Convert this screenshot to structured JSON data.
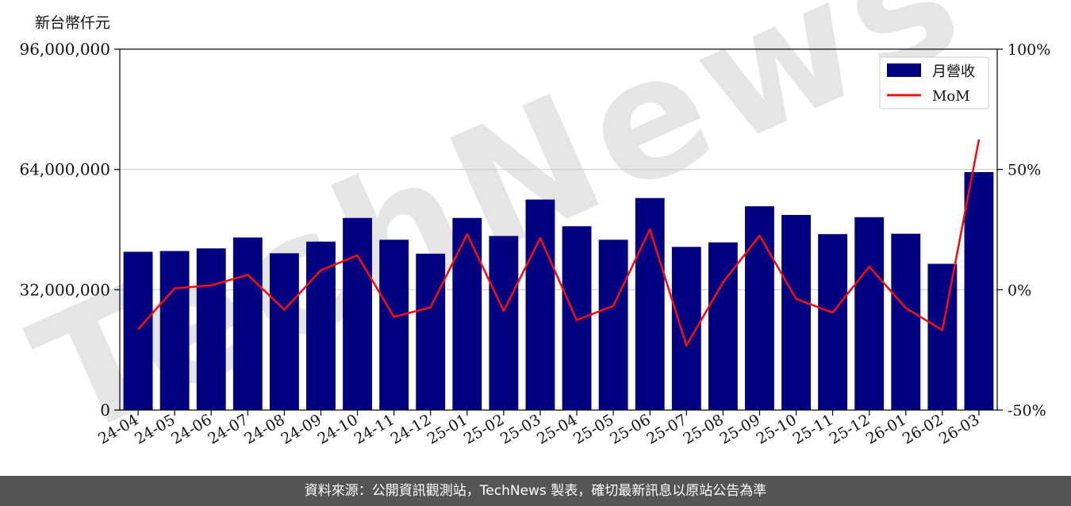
{
  "unit_label": "新台幣仟元",
  "footer_text": "資料來源：公開資訊觀測站，TechNews 製表，確切最新訊息以原站公告為準",
  "watermark": "TechNews",
  "colors": {
    "bar": "#000080",
    "line": "#ee1111",
    "grid": "#cccccc",
    "footer_bg": "#555555"
  },
  "chart_data": {
    "type": "bar",
    "categories": [
      "24-04",
      "24-05",
      "24-06",
      "24-07",
      "24-08",
      "24-09",
      "24-10",
      "24-11",
      "24-12",
      "25-01",
      "25-02",
      "25-03",
      "25-04",
      "25-05",
      "25-06",
      "25-07",
      "25-08",
      "25-09",
      "25-10",
      "25-11",
      "25-12",
      "26-01",
      "26-02",
      "26-03"
    ],
    "series": [
      {
        "name": "月營收",
        "type": "bar",
        "axis": "left",
        "values": [
          42100000,
          42300000,
          43000000,
          45900000,
          41700000,
          44800000,
          51100000,
          45300000,
          41600000,
          51100000,
          46300000,
          56000000,
          48900000,
          45300000,
          56400000,
          43400000,
          44600000,
          54200000,
          51900000,
          46800000,
          51300000,
          46900000,
          38900000,
          63300000
        ]
      },
      {
        "name": "MoM",
        "type": "line",
        "axis": "right",
        "values": [
          -16.5,
          0.6,
          1.8,
          6.2,
          -8.3,
          8.1,
          14.3,
          -11.3,
          -7.3,
          23.1,
          -8.8,
          21.5,
          -12.6,
          -6.7,
          25.1,
          -23.2,
          3.1,
          22.5,
          -3.8,
          -9.5,
          9.6,
          -7.6,
          -16.8,
          62.5
        ]
      }
    ],
    "y_left": {
      "lim": [
        0,
        96000000
      ],
      "ticks": [
        "0",
        "32,000,000",
        "64,000,000",
        "96,000,000"
      ]
    },
    "y_right": {
      "lim": [
        -50,
        100
      ],
      "ticks": [
        "-50%",
        "0%",
        "50%",
        "100%"
      ]
    },
    "grid": true,
    "legend": {
      "position": "top-right",
      "entries": [
        "月營收",
        "MoM"
      ]
    }
  }
}
